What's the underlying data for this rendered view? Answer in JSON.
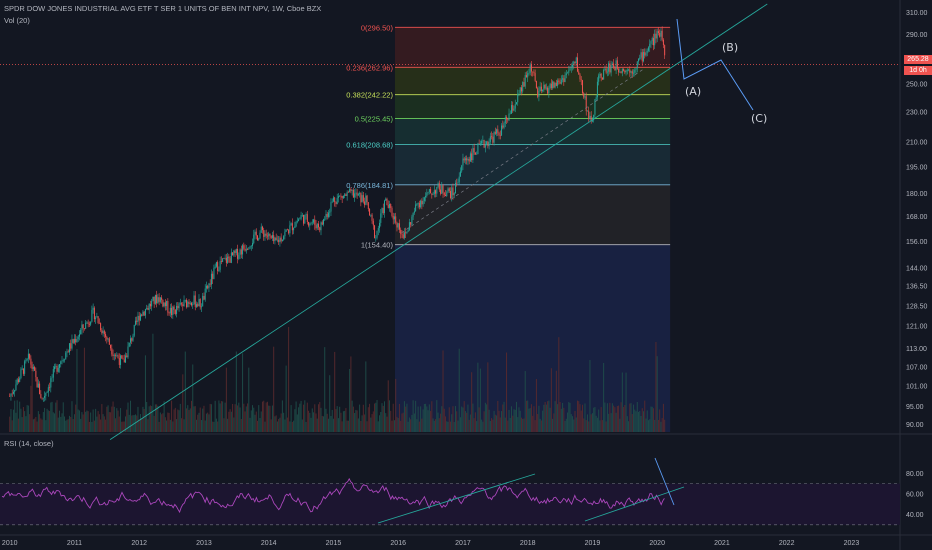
{
  "header": {
    "title": "SPDR DOW JONES INDUSTRIAL AVG ETF T SER 1 UNITS OF BEN INT NPV, 1W, Cboe BZX",
    "volume_label": "Vol (20)",
    "rsi_label": "RSI (14, close)"
  },
  "price_badges": {
    "last_price": "265.28",
    "countdown": "1d 0h"
  },
  "chart_data": {
    "type": "candlestick",
    "title": "SPDR DOW JONES INDUSTRIAL AVG ETF T SER 1 UNITS OF BEN INT NPV, 1W, Cboe BZX",
    "price_scale": "log",
    "y_ticks": [
      310.0,
      290.0,
      270.0,
      250.0,
      230.0,
      210.0,
      195.0,
      180.0,
      168.0,
      156.0,
      144.0,
      136.5,
      128.5,
      121.0,
      113.0,
      107.0,
      101.0,
      95.0,
      90.0
    ],
    "ylim": [
      88,
      318
    ],
    "x_ticks": [
      "2010",
      "2011",
      "2012",
      "2013",
      "2014",
      "2015",
      "2016",
      "2017",
      "2018",
      "2019",
      "2020",
      "2021",
      "2022",
      "2023"
    ],
    "xlim": [
      2009.85,
      2023.75
    ],
    "price_path": [
      [
        2010.0,
        98
      ],
      [
        2010.3,
        110
      ],
      [
        2010.5,
        97
      ],
      [
        2010.75,
        108
      ],
      [
        2011.0,
        116
      ],
      [
        2011.3,
        126
      ],
      [
        2011.6,
        112
      ],
      [
        2011.75,
        108
      ],
      [
        2012.0,
        125
      ],
      [
        2012.3,
        132
      ],
      [
        2012.5,
        126
      ],
      [
        2012.8,
        131
      ],
      [
        2012.95,
        129
      ],
      [
        2013.2,
        145
      ],
      [
        2013.5,
        150
      ],
      [
        2013.9,
        161
      ],
      [
        2014.1,
        155
      ],
      [
        2014.5,
        168
      ],
      [
        2014.8,
        163
      ],
      [
        2015.0,
        177
      ],
      [
        2015.3,
        180
      ],
      [
        2015.5,
        176
      ],
      [
        2015.65,
        158
      ],
      [
        2015.8,
        176
      ],
      [
        2016.1,
        158
      ],
      [
        2016.3,
        175
      ],
      [
        2016.6,
        183
      ],
      [
        2016.85,
        180
      ],
      [
        2017.0,
        198
      ],
      [
        2017.3,
        208
      ],
      [
        2017.6,
        218
      ],
      [
        2017.9,
        245
      ],
      [
        2018.05,
        265
      ],
      [
        2018.15,
        243
      ],
      [
        2018.5,
        252
      ],
      [
        2018.75,
        267
      ],
      [
        2018.98,
        220
      ],
      [
        2019.1,
        255
      ],
      [
        2019.3,
        265
      ],
      [
        2019.6,
        260
      ],
      [
        2019.9,
        282
      ],
      [
        2020.05,
        294
      ],
      [
        2020.1,
        285
      ],
      [
        2020.13,
        265
      ]
    ],
    "fibonacci": {
      "levels": [
        {
          "ratio": "0",
          "price": 296.5,
          "label": "0(296.50)",
          "color": "#ef5350",
          "fill": "#3b1c20"
        },
        {
          "ratio": "0.236",
          "price": 262.96,
          "label": "0.236(262.96)",
          "color": "#ef5350",
          "fill": "#2a3418"
        },
        {
          "ratio": "0.382",
          "price": 242.22,
          "label": "0.382(242.22)",
          "color": "#c6e05a",
          "fill": "#1d3420"
        },
        {
          "ratio": "0.5",
          "price": 225.45,
          "label": "0.5(225.45)",
          "color": "#6ed35f",
          "fill": "#173334"
        },
        {
          "ratio": "0.618",
          "price": 208.68,
          "label": "0.618(208.68)",
          "color": "#4dd0c8",
          "fill": "#1a2e38"
        },
        {
          "ratio": "0.786",
          "price": 184.81,
          "label": "0.786(184.81)",
          "color": "#78b4d8",
          "fill": "#252528"
        },
        {
          "ratio": "1",
          "price": 154.4,
          "label": "1(154.40)",
          "color": "#b2b5be",
          "fill": "#1a2347"
        }
      ],
      "x_start": 2015.95,
      "x_end": 2020.2
    },
    "trendline": {
      "from": [
        2011.55,
        86
      ],
      "to": [
        2021.7,
        318
      ],
      "color": "#26a69a"
    },
    "last_price_line": 265.28,
    "wave_labels": [
      "(A)",
      "(B)",
      "(C)"
    ],
    "rsi": {
      "ticks": [
        80.0,
        60.0,
        40.0
      ],
      "overbought": 70,
      "oversold": 30,
      "ylim": [
        25,
        90
      ]
    }
  }
}
